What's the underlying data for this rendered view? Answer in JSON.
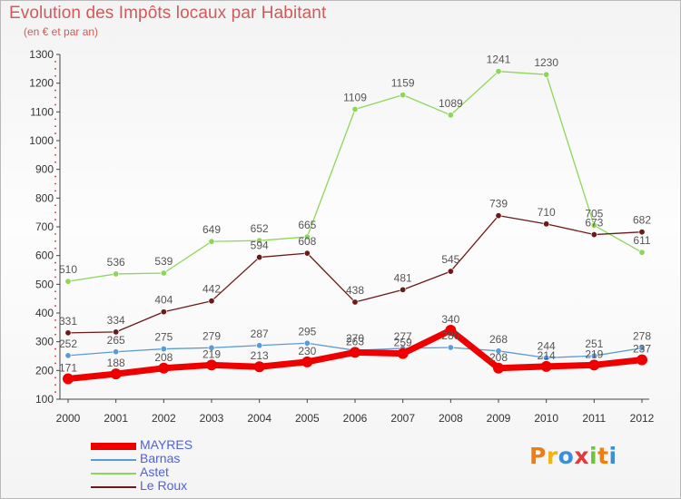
{
  "header": {
    "title": "Evolution des Impôts locaux par Habitant",
    "subtitle": "(en € et par an)"
  },
  "chart_data": {
    "type": "line",
    "title": "Evolution des Impôts locaux par Habitant",
    "subtitle": "(en € et par an)",
    "xlabel": "",
    "ylabel": "",
    "x": [
      "2000",
      "2001",
      "2002",
      "2003",
      "2004",
      "2005",
      "2006",
      "2007",
      "2008",
      "2009",
      "2010",
      "2011",
      "2012"
    ],
    "ylim": [
      100,
      1300
    ],
    "yticks": [
      100,
      200,
      300,
      400,
      500,
      600,
      700,
      800,
      900,
      1000,
      1100,
      1200,
      1300
    ],
    "grid": false,
    "legend_position": "bottom-left",
    "series": [
      {
        "name": "MAYRES",
        "color": "#ee0000",
        "values": [
          171,
          188,
          208,
          219,
          213,
          230,
          263,
          259,
          340,
          208,
          214,
          219,
          237
        ]
      },
      {
        "name": "Barnas",
        "color": "#5b9bd5",
        "values": [
          252,
          265,
          275,
          279,
          287,
          295,
          270,
          277,
          280,
          268,
          244,
          251,
          278
        ]
      },
      {
        "name": "Astet",
        "color": "#8ed65a",
        "values": [
          510,
          536,
          539,
          649,
          652,
          665,
          1109,
          1159,
          1089,
          1241,
          1230,
          705,
          611
        ]
      },
      {
        "name": "Le Roux",
        "color": "#6b1a1a",
        "values": [
          331,
          334,
          404,
          442,
          594,
          608,
          438,
          481,
          545,
          739,
          710,
          673,
          682
        ]
      }
    ]
  },
  "branding": {
    "logo_letters": [
      {
        "char": "P",
        "color": "#f07d14"
      },
      {
        "char": "r",
        "color": "#f0b414"
      },
      {
        "char": "o",
        "color": "#3a8fd6"
      },
      {
        "char": "x",
        "color": "#e23a3a"
      },
      {
        "char": "i",
        "color": "#6ec23c"
      },
      {
        "char": "t",
        "color": "#f07d14"
      },
      {
        "char": "i",
        "color": "#3a8fd6"
      }
    ]
  }
}
